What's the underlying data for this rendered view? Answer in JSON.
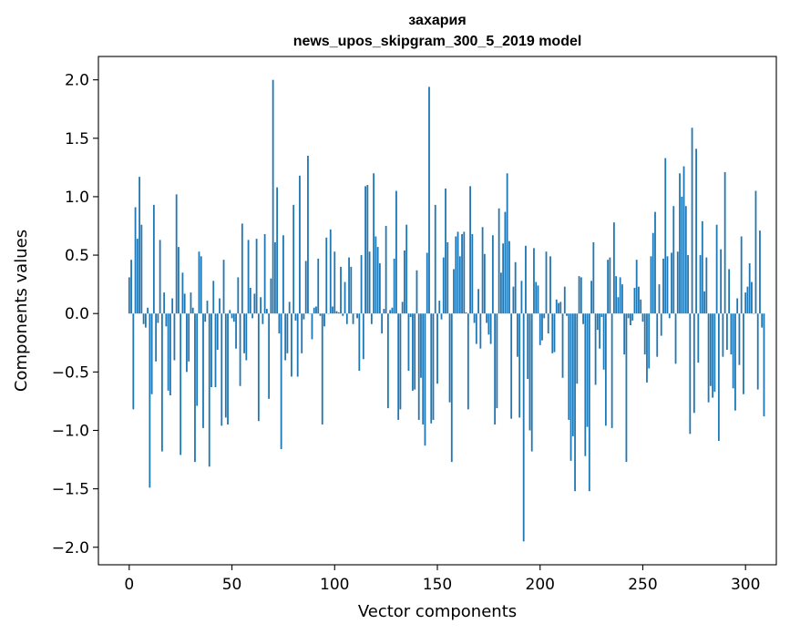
{
  "chart_data": {
    "type": "bar",
    "title": "захария",
    "subtitle": "news_upos_skipgram_300_5_2019 model",
    "xlabel": "Vector components",
    "ylabel": "Components values",
    "xlim": [
      -15,
      315
    ],
    "ylim": [
      -2.15,
      2.2
    ],
    "xticks": [
      0,
      50,
      100,
      150,
      200,
      250,
      300
    ],
    "yticks": [
      2.0,
      1.5,
      1.0,
      0.5,
      0.0,
      -0.5,
      -1.0,
      -1.5,
      -2.0
    ],
    "xtick_labels": [
      "0",
      "50",
      "100",
      "150",
      "200",
      "250",
      "300"
    ],
    "ytick_labels": [
      "2.0",
      "1.5",
      "1.0",
      "0.5",
      "0.0",
      "−0.5",
      "−1.0",
      "−1.5",
      "−2.0"
    ],
    "bar_color": "#1f77b4",
    "grid": false,
    "values": [
      0.31,
      0.46,
      -0.82,
      0.91,
      0.64,
      1.17,
      0.76,
      -0.09,
      -0.12,
      0.05,
      -1.49,
      -0.69,
      0.93,
      -0.41,
      -0.08,
      0.63,
      -1.18,
      0.18,
      -0.11,
      -0.66,
      -0.7,
      0.13,
      -0.4,
      1.02,
      0.57,
      -1.21,
      0.35,
      0.17,
      -0.5,
      -0.41,
      0.18,
      0.05,
      -1.27,
      -0.79,
      0.53,
      0.49,
      -0.98,
      -0.07,
      0.11,
      -1.31,
      -0.63,
      0.28,
      -0.63,
      -0.31,
      0.13,
      -0.96,
      0.46,
      -0.89,
      -0.95,
      0.03,
      -0.04,
      -0.07,
      -0.3,
      0.31,
      -0.62,
      0.77,
      -0.34,
      -0.4,
      0.63,
      0.22,
      -0.04,
      0.17,
      0.64,
      -0.92,
      0.14,
      -0.09,
      0.68,
      0.04,
      -0.73,
      0.3,
      2.0,
      0.61,
      1.08,
      -0.17,
      -1.16,
      0.67,
      -0.4,
      -0.34,
      0.1,
      -0.54,
      0.93,
      -0.06,
      -0.54,
      1.18,
      -0.34,
      -0.05,
      0.45,
      1.35,
      0.0,
      -0.22,
      0.05,
      0.06,
      0.47,
      -0.02,
      -0.95,
      -0.11,
      0.65,
      0.0,
      0.72,
      0.06,
      0.53,
      0.02,
      0.01,
      0.4,
      -0.02,
      0.27,
      -0.09,
      0.48,
      0.4,
      -0.09,
      0.0,
      -0.04,
      -0.49,
      0.5,
      -0.39,
      1.09,
      1.1,
      0.53,
      -0.09,
      1.2,
      0.66,
      0.57,
      0.43,
      -0.17,
      0.04,
      0.75,
      -0.81,
      0.03,
      0.05,
      0.47,
      1.05,
      -0.91,
      -0.82,
      0.1,
      0.54,
      0.76,
      -0.49,
      -0.03,
      -0.66,
      -0.65,
      0.37,
      -0.91,
      -0.55,
      -0.95,
      -1.13,
      0.52,
      1.94,
      -0.94,
      -0.91,
      0.93,
      -0.6,
      0.11,
      -0.05,
      0.48,
      1.07,
      0.61,
      -0.76,
      -1.27,
      0.38,
      0.66,
      0.7,
      0.49,
      0.68,
      0.7,
      0.01,
      -0.82,
      1.09,
      0.68,
      -0.08,
      -0.26,
      0.21,
      -0.3,
      0.74,
      0.51,
      -0.08,
      -0.18,
      -0.26,
      0.67,
      -0.95,
      -0.81,
      0.9,
      0.35,
      0.6,
      0.87,
      1.2,
      0.62,
      -0.9,
      0.23,
      0.44,
      -0.37,
      -0.89,
      0.28,
      -1.95,
      0.58,
      -0.56,
      -1.0,
      -1.18,
      0.56,
      0.27,
      0.24,
      -0.27,
      -0.23,
      -0.04,
      0.53,
      -0.17,
      0.49,
      -0.34,
      -0.33,
      0.12,
      0.09,
      0.1,
      -0.55,
      0.23,
      -0.02,
      -0.91,
      -1.26,
      -1.05,
      -1.52,
      -0.6,
      0.32,
      0.31,
      -0.09,
      -1.22,
      -0.97,
      -1.52,
      0.28,
      0.61,
      -0.61,
      -0.14,
      -0.3,
      -0.03,
      -0.48,
      -0.96,
      0.46,
      0.48,
      -0.98,
      0.78,
      0.32,
      0.14,
      0.31,
      0.25,
      -0.35,
      -1.27,
      -0.04,
      -0.1,
      -0.06,
      0.22,
      0.46,
      0.23,
      0.12,
      -0.07,
      -0.35,
      -0.59,
      -0.47,
      0.49,
      0.69,
      0.87,
      -0.37,
      0.25,
      -0.19,
      0.47,
      1.33,
      0.49,
      -0.04,
      0.52,
      0.92,
      -0.43,
      0.53,
      1.2,
      1.0,
      1.26,
      0.92,
      0.5,
      -1.03,
      1.59,
      -0.85,
      1.41,
      -0.42,
      0.5,
      0.79,
      0.19,
      0.48,
      -0.76,
      -0.62,
      -0.72,
      -0.67,
      0.76,
      -1.09,
      0.55,
      -0.37,
      1.21,
      -0.31,
      0.38,
      -0.35,
      -0.64,
      -0.83,
      0.13,
      -0.44,
      0.66,
      -0.69,
      0.18,
      0.23,
      0.43,
      0.27,
      0.0,
      1.05,
      -0.65,
      0.71,
      -0.12,
      -0.88
    ]
  }
}
